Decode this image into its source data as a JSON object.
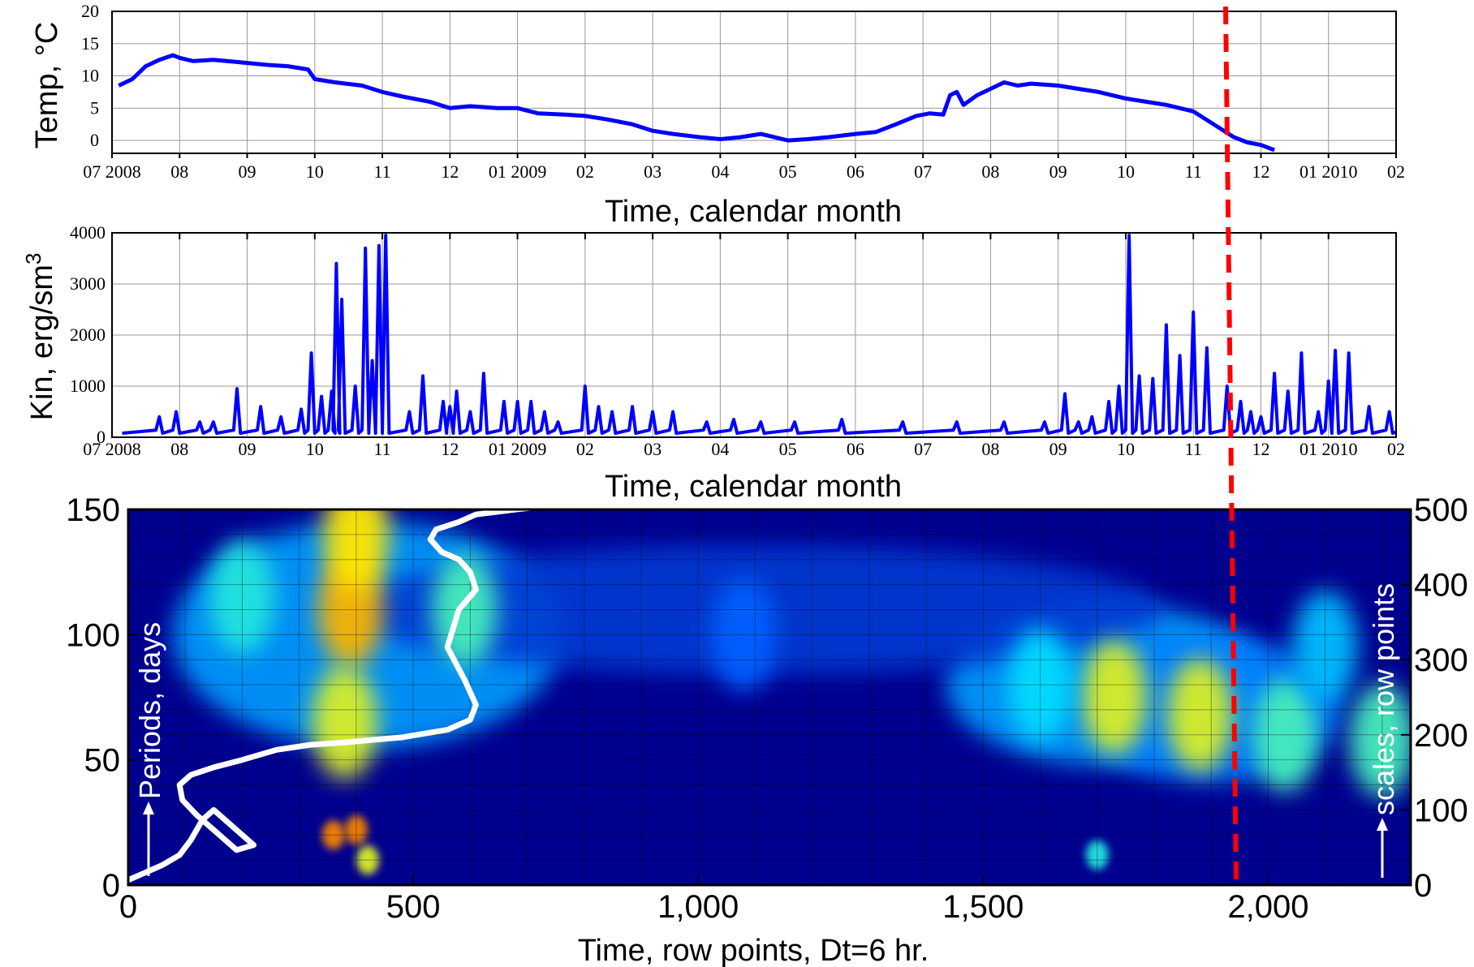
{
  "chart_data": [
    {
      "type": "line",
      "ylabel": "Temp, °C",
      "xlabel": "Time, calendar month",
      "ylim": [
        -2,
        20
      ],
      "y_ticks": [
        "0",
        "5",
        "10",
        "15",
        "20"
      ],
      "x_tick_labels": [
        "07 2008",
        "08",
        "09",
        "10",
        "11",
        "12",
        "01 2009",
        "02",
        "03",
        "04",
        "05",
        "06",
        "07",
        "08",
        "09",
        "10",
        "11",
        "12",
        "01 2010",
        "02"
      ],
      "grid": true,
      "series": [
        {
          "color": "#0000ff",
          "x_month_index": [
            0.1,
            0.3,
            0.5,
            0.7,
            0.9,
            1.0,
            1.2,
            1.5,
            1.8,
            2.0,
            2.3,
            2.6,
            2.9,
            3.0,
            3.3,
            3.7,
            4.0,
            4.3,
            4.7,
            5.0,
            5.3,
            5.7,
            6.0,
            6.3,
            6.7,
            7.0,
            7.3,
            7.7,
            8.0,
            8.3,
            8.7,
            9.0,
            9.3,
            9.6,
            10.0,
            10.3,
            10.6,
            11.0,
            11.3,
            11.6,
            11.9,
            12.1,
            12.3,
            12.4,
            12.5,
            12.6,
            12.8,
            13.0,
            13.2,
            13.4,
            13.6,
            14.0,
            14.3,
            14.6,
            15.0,
            15.3,
            15.6,
            16.0,
            16.3,
            16.6,
            16.8,
            17.0,
            17.2
          ],
          "y": [
            8.5,
            9.5,
            11.5,
            12.5,
            13.2,
            12.8,
            12.3,
            12.5,
            12.2,
            12.0,
            11.7,
            11.5,
            11.0,
            9.5,
            9.0,
            8.5,
            7.5,
            6.8,
            6.0,
            5.0,
            5.3,
            5.0,
            5.0,
            4.2,
            4.0,
            3.8,
            3.3,
            2.5,
            1.5,
            1.0,
            0.5,
            0.2,
            0.5,
            1.0,
            0.0,
            0.2,
            0.5,
            1.0,
            1.3,
            2.5,
            3.8,
            4.2,
            4.0,
            7.0,
            7.5,
            5.5,
            7.0,
            8.0,
            9.0,
            8.5,
            8.8,
            8.5,
            8.0,
            7.5,
            6.5,
            6.0,
            5.5,
            4.5,
            2.5,
            0.5,
            -0.3,
            -0.7,
            -1.5
          ]
        }
      ]
    },
    {
      "type": "line",
      "ylabel": "Kin, erg/sm",
      "ylabel_sup": "3",
      "xlabel": "Time, calendar month",
      "ylim": [
        0,
        4000
      ],
      "y_ticks": [
        "0",
        "1000",
        "2000",
        "3000",
        "4000"
      ],
      "x_tick_labels": [
        "07 2008",
        "08",
        "09",
        "10",
        "11",
        "12",
        "01 2009",
        "02",
        "03",
        "04",
        "05",
        "06",
        "07",
        "08",
        "09",
        "10",
        "11",
        "12",
        "01 2010",
        "02"
      ],
      "grid": true,
      "series": [
        {
          "color": "#0000ff",
          "baseline": 80,
          "peaks_month_index": [
            0.7,
            0.95,
            1.3,
            1.5,
            1.85,
            2.2,
            2.5,
            2.8,
            2.95,
            3.1,
            3.25,
            3.32,
            3.4,
            3.6,
            3.75,
            3.85,
            3.95,
            4.05,
            4.4,
            4.6,
            4.9,
            5.0,
            5.1,
            5.3,
            5.5,
            5.8,
            6.0,
            6.2,
            6.4,
            6.6,
            7.0,
            7.2,
            7.4,
            7.7,
            8.0,
            8.3,
            8.8,
            9.2,
            9.6,
            10.1,
            10.8,
            11.7,
            12.5,
            13.2,
            13.8,
            14.1,
            14.3,
            14.5,
            14.75,
            14.9,
            15.05,
            15.2,
            15.4,
            15.6,
            15.8,
            16.0,
            16.2,
            16.5,
            16.7,
            16.85,
            17.0,
            17.2,
            17.4,
            17.6,
            17.85,
            18.0,
            18.1,
            18.3,
            18.6,
            18.9,
            19.15,
            19.35,
            19.5,
            19.65
          ],
          "peaks_y": [
            400,
            500,
            300,
            300,
            950,
            600,
            400,
            550,
            1650,
            800,
            900,
            3400,
            2700,
            1000,
            3700,
            1500,
            3750,
            3950,
            500,
            1200,
            700,
            600,
            900,
            500,
            1250,
            700,
            700,
            700,
            500,
            300,
            1000,
            600,
            500,
            600,
            500,
            500,
            300,
            350,
            300,
            300,
            350,
            300,
            300,
            300,
            300,
            850,
            300,
            400,
            700,
            1000,
            3950,
            1200,
            1150,
            2200,
            1600,
            2450,
            1750,
            1000,
            700,
            500,
            400,
            1250,
            900,
            1650,
            500,
            1100,
            1700,
            1650,
            600,
            500,
            850,
            1300,
            800,
            500
          ]
        }
      ]
    },
    {
      "type": "heatmap",
      "xlabel": "Time,  row points, Dt=6 hr.",
      "ylabel": "Periods, days",
      "ylabel_right": "scales, row points",
      "xlim": [
        0,
        2250
      ],
      "ylim_left": [
        0,
        150
      ],
      "ylim_right": [
        0,
        500
      ],
      "x_ticks": [
        "0",
        "500",
        "1,000",
        "1,500",
        "2,000"
      ],
      "y_ticks_left": [
        "0",
        "50",
        "100",
        "150"
      ],
      "y_ticks_right": [
        "0",
        "100",
        "200",
        "300",
        "400",
        "500"
      ],
      "colormap": "jet",
      "hotspots": [
        {
          "x": 390,
          "period": 110,
          "strength": 0.85
        },
        {
          "x": 400,
          "period": 140,
          "strength": 0.8
        },
        {
          "x": 380,
          "period": 65,
          "strength": 0.75
        },
        {
          "x": 200,
          "period": 115,
          "strength": 0.5
        },
        {
          "x": 590,
          "period": 110,
          "strength": 0.55
        },
        {
          "x": 1730,
          "period": 75,
          "strength": 0.75
        },
        {
          "x": 1880,
          "period": 68,
          "strength": 0.75
        },
        {
          "x": 2030,
          "period": 60,
          "strength": 0.55
        },
        {
          "x": 2200,
          "period": 58,
          "strength": 0.55
        },
        {
          "x": 1600,
          "period": 80,
          "strength": 0.45
        },
        {
          "x": 2100,
          "period": 95,
          "strength": 0.4
        },
        {
          "x": 1080,
          "period": 100,
          "strength": 0.25
        },
        {
          "x": 360,
          "period": 20,
          "strength": 0.9
        },
        {
          "x": 400,
          "period": 22,
          "strength": 0.9
        },
        {
          "x": 420,
          "period": 10,
          "strength": 0.75
        },
        {
          "x": 1700,
          "period": 12,
          "strength": 0.5
        }
      ],
      "overlay_series": {
        "color": "#ffffff",
        "x": [
          0,
          30,
          60,
          90,
          110,
          130,
          150,
          180,
          200,
          220,
          190,
          160,
          120,
          95,
          90,
          110,
          150,
          200,
          260,
          320,
          380,
          430,
          480,
          560,
          600,
          610,
          590,
          560,
          580,
          610,
          600,
          580,
          550,
          530,
          540,
          580,
          610,
          680,
          720
        ],
        "y": [
          2,
          5,
          8,
          12,
          18,
          26,
          30,
          24,
          20,
          16,
          14,
          20,
          28,
          34,
          40,
          44,
          47,
          50,
          54,
          56,
          57,
          58,
          59,
          62,
          66,
          72,
          82,
          95,
          110,
          118,
          125,
          130,
          133,
          138,
          142,
          145,
          148,
          150,
          151
        ]
      },
      "reference_line": {
        "style": "dashed",
        "color": "#ff0000",
        "x": 1960
      }
    }
  ],
  "annotations": {
    "periods_label": "Periods, days",
    "scales_label": "scales, row points"
  },
  "colors": {
    "series": "#0000ff",
    "reference_line": "#ff0000",
    "overlay": "#ffffff",
    "background": "#ffffff",
    "axis": "#000000"
  }
}
